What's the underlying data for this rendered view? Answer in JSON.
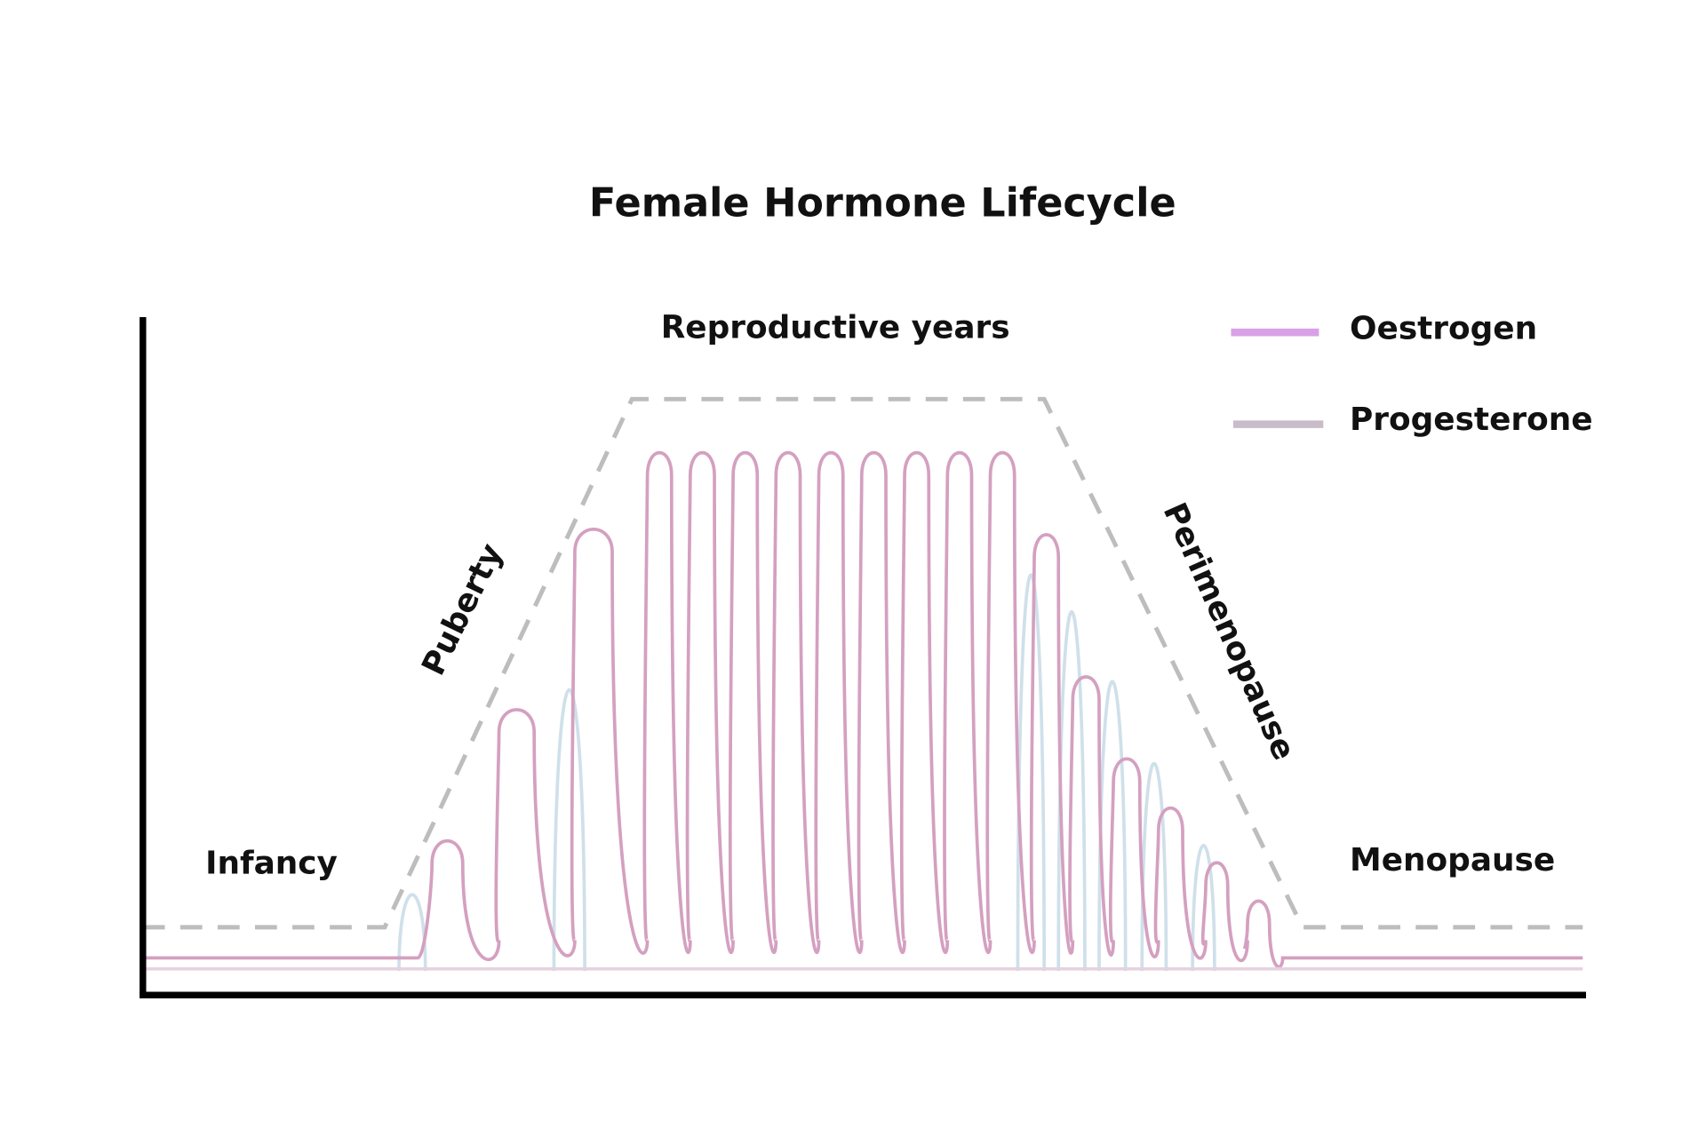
{
  "title": "Female Hormone Lifecycle",
  "phases": {
    "infancy": "Infancy",
    "puberty": "Puberty",
    "reproductive_years": "Reproductive years",
    "perimenopause": "Perimenopause",
    "menopause": "Menopause"
  },
  "legend": [
    {
      "label": "Oestrogen"
    },
    {
      "label": "Progesterone"
    }
  ]
}
